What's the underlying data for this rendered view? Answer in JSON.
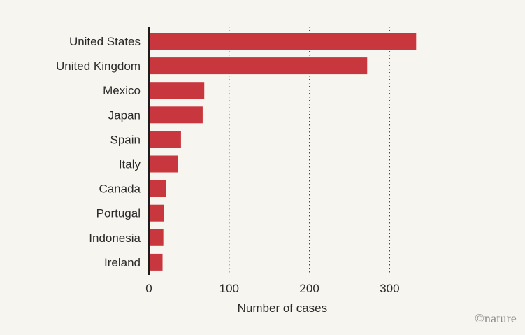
{
  "chart_data": {
    "type": "bar",
    "orientation": "horizontal",
    "categories": [
      "United States",
      "United Kingdom",
      "Mexico",
      "Japan",
      "Spain",
      "Italy",
      "Canada",
      "Portugal",
      "Indonesia",
      "Ireland"
    ],
    "values": [
      333,
      272,
      69,
      67,
      40,
      36,
      21,
      19,
      18,
      17
    ],
    "xlabel": "Number of cases",
    "ylabel": "",
    "xlim": [
      0,
      350
    ],
    "xticks": [
      0,
      100,
      200,
      300
    ],
    "grid": "vertical dotted at 100, 200, 300",
    "bar_color": "#c8373d"
  },
  "credit": "©nature"
}
